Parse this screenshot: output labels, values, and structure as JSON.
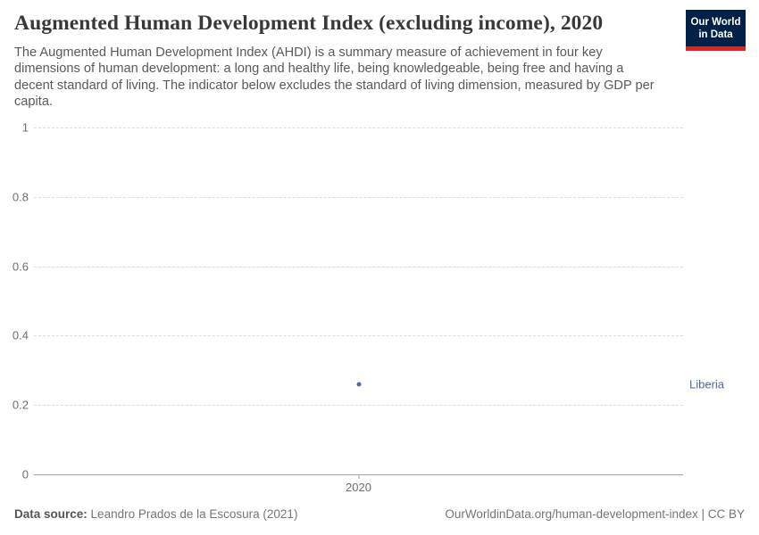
{
  "header": {
    "title": "Augmented Human Development Index (excluding income), 2020",
    "subtitle": "The Augmented Human Development Index (AHDI) is a summary measure of achievement in four key dimensions of human development: a long and healthy life, being knowledgeable, being free and having a decent standard of living. The indicator below excludes the standard of living dimension, measured by GDP per capita.",
    "logo": {
      "line1": "Our World",
      "line2": "in Data",
      "bg_color": "#002147",
      "accent_color": "#d42b21"
    }
  },
  "chart_data": {
    "type": "scatter",
    "title": "Augmented Human Development Index (excluding income), 2020",
    "x": [
      2020
    ],
    "series": [
      {
        "name": "Liberia",
        "values": [
          0.26
        ],
        "color": "#4c6a9c"
      }
    ],
    "xlabel": "",
    "ylabel": "",
    "ylim": [
      0,
      1
    ],
    "yticks": [
      0,
      0.2,
      0.4,
      0.6,
      0.8,
      1
    ],
    "xticks": [
      2020
    ],
    "grid": "horizontal-dashed",
    "legend_position": "right-of-point"
  },
  "footer": {
    "source_label": "Data source:",
    "source_value": "Leandro Prados de la Escosura (2021)",
    "credit": "OurWorldinData.org/human-development-index | CC BY"
  }
}
